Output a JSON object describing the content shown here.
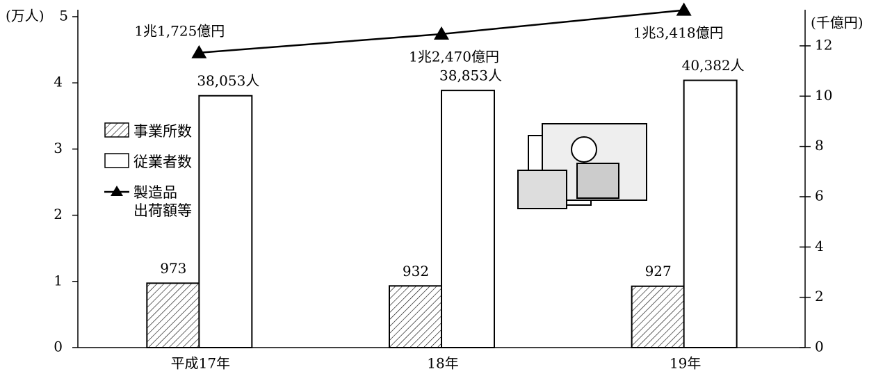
{
  "chart_data": {
    "type": "bar",
    "y_label": "(万人)",
    "y2_label": "(千億円)",
    "categories": [
      "平成17年",
      "18年",
      "19年"
    ],
    "series": [
      {
        "name": "事業所数",
        "type": "bar",
        "color": "#000000",
        "pattern": "hatch",
        "values": [
          0.973,
          0.932,
          0.927
        ],
        "value_labels": [
          "973",
          "932",
          "927"
        ]
      },
      {
        "name": "従業者数",
        "type": "bar",
        "color": "#000000",
        "pattern": "none",
        "values": [
          3.8053,
          3.8853,
          4.0382
        ],
        "value_labels": [
          "38,053人",
          "38,853人",
          "40,382人"
        ]
      },
      {
        "name": "製造品\n出荷額等",
        "type": "line",
        "axis": "y2",
        "color": "#000000",
        "values": [
          11.725,
          12.47,
          13.418
        ],
        "value_labels": [
          "1兆1,725億円",
          "1兆2,470億円",
          "1兆3,418億円"
        ]
      }
    ],
    "ylim": [
      0,
      5
    ],
    "yticks": [
      0,
      1,
      2,
      3,
      4,
      5
    ],
    "y2lim": [
      0,
      13.16
    ],
    "y2ticks": [
      0,
      2,
      4,
      6,
      8,
      10,
      12
    ],
    "legend": "left"
  }
}
